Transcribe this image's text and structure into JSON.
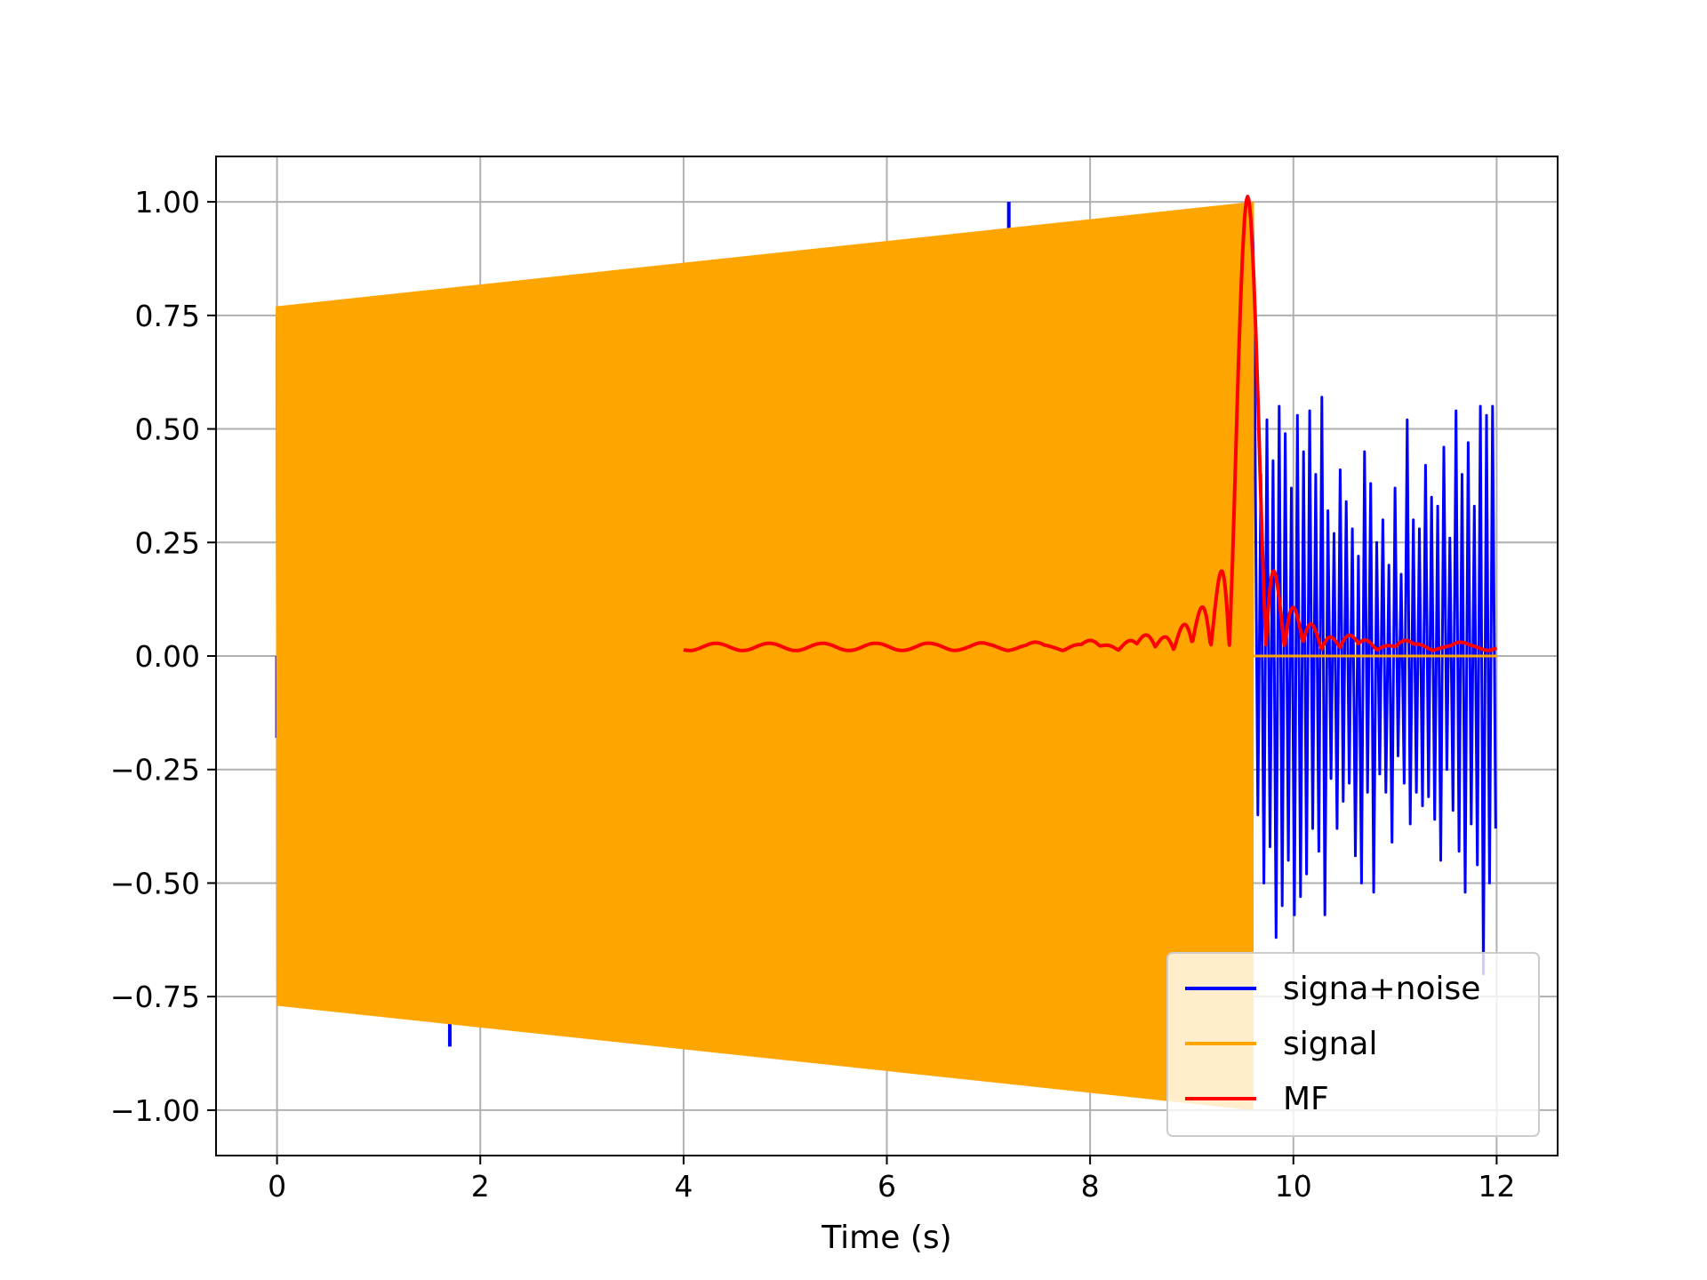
{
  "chart_data": {
    "type": "line",
    "title": "",
    "xlabel": "Time (s)",
    "ylabel": "",
    "xlim": [
      -0.6,
      12.6
    ],
    "ylim": [
      -1.1,
      1.1
    ],
    "xticks": [
      0,
      2,
      4,
      6,
      8,
      10,
      12
    ],
    "xtick_labels": [
      "0",
      "2",
      "4",
      "6",
      "8",
      "10",
      "12"
    ],
    "yticks": [
      1.0,
      0.75,
      0.5,
      0.25,
      0.0,
      -0.25,
      -0.5,
      -0.75,
      -1.0
    ],
    "ytick_labels": [
      "1.00",
      "0.75",
      "0.50",
      "0.25",
      "0.00",
      "−0.25",
      "−0.50",
      "−0.75",
      "−1.00"
    ],
    "grid": true,
    "legend_position": "lower-right",
    "series": [
      {
        "name": "signa+noise",
        "color": "#0000ff",
        "description_free": true,
        "chirp_window": [
          0,
          9.6
        ],
        "noise_window": [
          9.6,
          12.0
        ],
        "noise_peaks": {
          "x": [
            9.62,
            9.68,
            9.74,
            9.8,
            9.86,
            9.92,
            9.98,
            10.04,
            10.1,
            10.16,
            10.22,
            10.28,
            10.34,
            10.4,
            10.46,
            10.52,
            10.58,
            10.64,
            10.7,
            10.76,
            10.82,
            10.88,
            10.94,
            11.0,
            11.06,
            11.12,
            11.18,
            11.24,
            11.3,
            11.36,
            11.42,
            11.48,
            11.54,
            11.6,
            11.66,
            11.72,
            11.78,
            11.84,
            11.9,
            11.96
          ],
          "y_max": [
            0.58,
            0.4,
            0.52,
            0.43,
            0.55,
            0.49,
            0.37,
            0.53,
            0.45,
            0.54,
            0.4,
            0.57,
            0.32,
            0.27,
            0.41,
            0.34,
            0.28,
            0.22,
            0.45,
            0.38,
            0.25,
            0.3,
            0.2,
            0.37,
            0.18,
            0.52,
            0.3,
            0.28,
            0.42,
            0.35,
            0.33,
            0.46,
            0.26,
            0.54,
            0.4,
            0.47,
            0.33,
            0.55,
            0.53,
            0.55
          ],
          "y_min": [
            -0.35,
            -0.5,
            -0.42,
            -0.62,
            -0.55,
            -0.45,
            -0.57,
            -0.53,
            -0.48,
            -0.38,
            -0.43,
            -0.57,
            -0.27,
            -0.38,
            -0.32,
            -0.28,
            -0.44,
            -0.5,
            -0.3,
            -0.52,
            -0.26,
            -0.3,
            -0.41,
            -0.22,
            -0.28,
            -0.37,
            -0.3,
            -0.33,
            -0.31,
            -0.36,
            -0.45,
            -0.25,
            -0.34,
            -0.43,
            -0.52,
            -0.37,
            -0.46,
            -0.7,
            -0.5,
            -0.38
          ]
        }
      },
      {
        "name": "signal",
        "color": "#ffa500",
        "chirp_window": [
          0,
          9.6
        ],
        "envelope_start": 0.77,
        "envelope_end": 1.0,
        "after_value": 0.0
      },
      {
        "name": "MF",
        "color": "#ff0000",
        "x_start": 4.0,
        "peak_x": 9.55,
        "peak_y": 1.0,
        "x_end": 12.0,
        "baseline": 0.02
      }
    ]
  }
}
